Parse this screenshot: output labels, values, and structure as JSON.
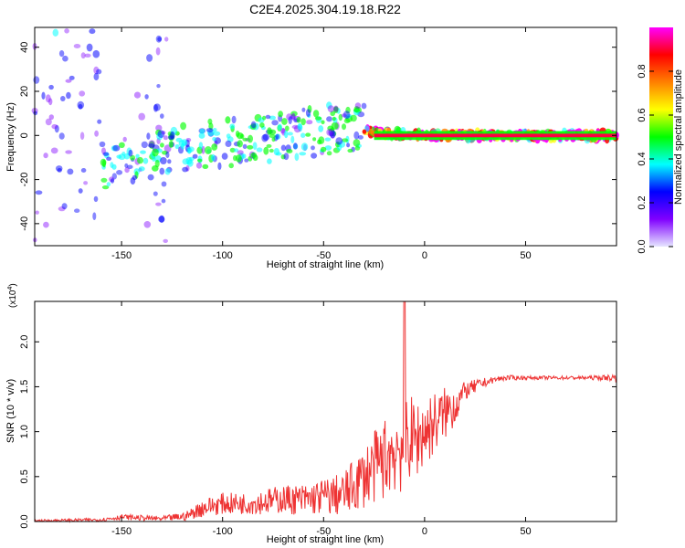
{
  "title": "C2E4.2025.304.19.18.R22",
  "chart_data": [
    {
      "type": "heatmap",
      "name": "spectrogram",
      "xlabel": "Height of straight line (km)",
      "ylabel": "Frequency (Hz)",
      "xlim": [
        -193,
        95
      ],
      "ylim": [
        -50,
        49
      ],
      "xticks": [
        -150,
        -100,
        -50,
        0,
        50
      ],
      "xtick_labels": [
        "-150",
        "-100",
        "-50",
        "0",
        "50"
      ],
      "yticks": [
        -40,
        -20,
        0,
        20,
        40
      ],
      "ytick_labels": [
        "-40",
        "-20",
        "0",
        "20",
        "40"
      ],
      "colorbar": {
        "label": "Normalized spectral amplitude",
        "range": [
          0,
          1
        ],
        "ticks": [
          0.0,
          0.2,
          0.4,
          0.6,
          0.8
        ],
        "tick_labels": [
          "0.0",
          "0.2",
          "0.4",
          "0.6",
          "0.8"
        ],
        "colors": [
          "#e6e6ff",
          "#8000ff",
          "#0000ff",
          "#00ffff",
          "#00ff00",
          "#ffff00",
          "#ff8000",
          "#ff0000",
          "#ff00ff"
        ]
      },
      "clusters": [
        {
          "x_range": [
            -193,
            -160
          ],
          "y_range": [
            -48,
            48
          ],
          "density": 0.55,
          "amp": 0.2
        },
        {
          "x_range": [
            -143,
            -127
          ],
          "y_range": [
            -48,
            48
          ],
          "density": 0.45,
          "amp": 0.18
        },
        {
          "x_range": [
            -160,
            -120
          ],
          "y_range": [
            -22,
            -2
          ],
          "density": 0.7,
          "amp": 0.35
        },
        {
          "x_range": [
            -120,
            -30
          ],
          "y_range": [
            -10,
            12
          ],
          "density": 0.8,
          "amp": 0.35
        },
        {
          "x_range": [
            -30,
            95
          ],
          "y_range": [
            -2,
            2
          ],
          "density": 1.0,
          "amp": 0.75
        }
      ],
      "trend": [
        {
          "x": -160,
          "y": -14
        },
        {
          "x": -120,
          "y": -6
        },
        {
          "x": -80,
          "y": -2
        },
        {
          "x": -40,
          "y": 4
        },
        {
          "x": -20,
          "y": 1
        },
        {
          "x": 0,
          "y": 0
        },
        {
          "x": 95,
          "y": 0
        }
      ]
    },
    {
      "type": "line",
      "name": "snr",
      "xlabel": "Height of straight line (km)",
      "ylabel": "SNR (10 * v/v)",
      "scale_label": "(x10",
      "scale_exponent": "4",
      "xlim": [
        -193,
        95
      ],
      "ylim": [
        0,
        2.45
      ],
      "xticks": [
        -150,
        -100,
        -50,
        0,
        50
      ],
      "xtick_labels": [
        "-150",
        "-100",
        "-50",
        "0",
        "50"
      ],
      "yticks": [
        0.0,
        0.5,
        1.0,
        1.5,
        2.0
      ],
      "ytick_labels": [
        "0.0",
        "0.5",
        "1.0",
        "1.5",
        "2.0"
      ],
      "color": "#ee3333",
      "series": [
        {
          "name": "SNR",
          "x": [
            -193,
            -160,
            -150,
            -130,
            -118,
            -110,
            -100,
            -90,
            -80,
            -70,
            -60,
            -50,
            -40,
            -35,
            -30,
            -25,
            -20,
            -15,
            -12,
            -10,
            -8,
            -5,
            0,
            5,
            10,
            15,
            20,
            25,
            30,
            35,
            40,
            50,
            60,
            70,
            80,
            90,
            95
          ],
          "y": [
            0.01,
            0.02,
            0.05,
            0.03,
            0.06,
            0.15,
            0.2,
            0.2,
            0.22,
            0.25,
            0.24,
            0.28,
            0.3,
            0.4,
            0.5,
            0.6,
            0.7,
            0.8,
            0.85,
            0.9,
            0.95,
            0.9,
            1.0,
            1.1,
            1.2,
            1.3,
            1.45,
            1.5,
            1.55,
            1.58,
            1.6,
            1.6,
            1.6,
            1.6,
            1.6,
            1.6,
            1.6
          ],
          "noise": [
            0.01,
            0.02,
            0.03,
            0.03,
            0.05,
            0.1,
            0.12,
            0.12,
            0.14,
            0.16,
            0.18,
            0.2,
            0.25,
            0.3,
            0.35,
            0.4,
            0.45,
            0.5,
            0.55,
            0.6,
            0.5,
            0.45,
            0.4,
            0.35,
            0.3,
            0.25,
            0.1,
            0.08,
            0.05,
            0.03,
            0.03,
            0.02,
            0.02,
            0.02,
            0.02,
            0.03,
            0.05
          ]
        }
      ],
      "peak": {
        "x": -10,
        "y": 2.45
      }
    }
  ]
}
